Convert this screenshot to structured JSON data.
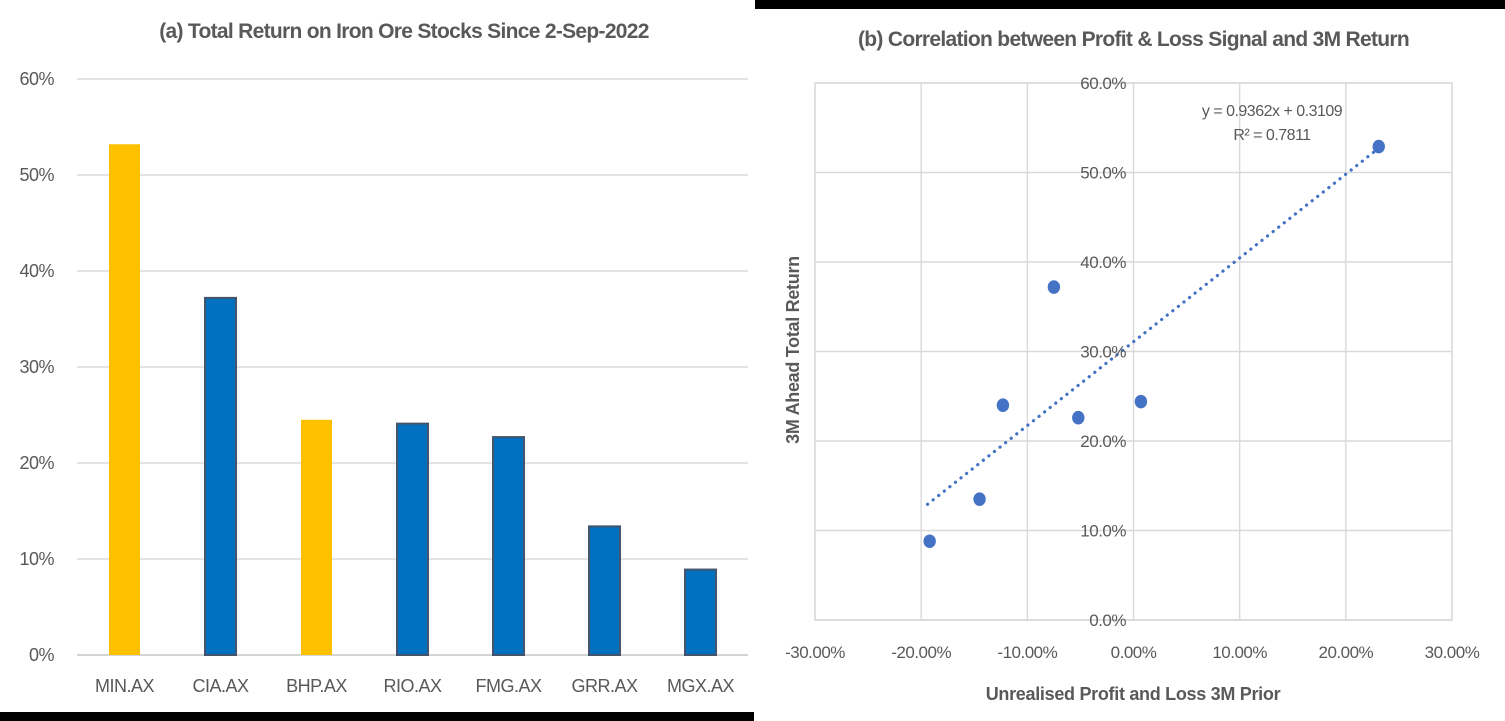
{
  "page": {
    "background": "#ffffff",
    "divider_strip_color": "#000000"
  },
  "colors": {
    "bar_blue_fill": "#0070C0",
    "bar_blue_border": "#44546A",
    "bar_yellow_fill": "#FFC000",
    "scatter_blue": "#4472C4",
    "trendline_blue": "#4472C4",
    "gridline": "#D9D9D9",
    "axis_line": "#C6C6C6",
    "text_gray": "#595959"
  },
  "chart_data": [
    {
      "type": "bar",
      "title": "(a) Total Return on Iron Ore Stocks Since 2-Sep-2022",
      "categories": [
        "MIN.AX",
        "CIA.AX",
        "BHP.AX",
        "RIO.AX",
        "FMG.AX",
        "GRR.AX",
        "MGX.AX"
      ],
      "values": [
        53.2,
        37.2,
        24.5,
        24.1,
        22.7,
        13.4,
        8.9
      ],
      "unit": "%",
      "bar_colors": [
        "yellow",
        "blue",
        "yellow",
        "blue",
        "blue",
        "blue",
        "blue"
      ],
      "xlabel": "",
      "ylabel": "",
      "ylim": [
        0,
        60
      ],
      "y_tick_step": 10,
      "y_tick_labels": [
        "0%",
        "10%",
        "20%",
        "30%",
        "40%",
        "50%",
        "60%"
      ],
      "grid": true,
      "legend": "none"
    },
    {
      "type": "scatter",
      "title": "(b) Correlation between Profit & Loss Signal and 3M Return",
      "xlabel": "Unrealised Profit and Loss 3M Prior",
      "ylabel": "3M Ahead Total Return",
      "points": [
        {
          "x": -19.2,
          "y": 8.8
        },
        {
          "x": -14.5,
          "y": 13.5
        },
        {
          "x": -12.3,
          "y": 24.0
        },
        {
          "x": -7.5,
          "y": 37.2
        },
        {
          "x": -5.2,
          "y": 22.6
        },
        {
          "x": 0.7,
          "y": 24.4
        },
        {
          "x": 23.1,
          "y": 52.9
        }
      ],
      "trendline": {
        "equation": "y = 0.9362x + 0.3109",
        "r_squared": "R² = 0.7811",
        "slope": 0.9362,
        "intercept_pct": 31.09,
        "x_start": -19.4,
        "x_end": 23.4,
        "style": "dotted"
      },
      "xlim": [
        -30,
        30
      ],
      "x_tick_step": 10,
      "x_tick_labels": [
        "-30.00%",
        "-20.00%",
        "-10.00%",
        "0.00%",
        "10.00%",
        "20.00%",
        "30.00%"
      ],
      "ylim": [
        0,
        60
      ],
      "y_tick_step": 10,
      "y_tick_labels": [
        "0.0%",
        "10.0%",
        "20.0%",
        "30.0%",
        "40.0%",
        "50.0%",
        "60.0%"
      ],
      "grid": true,
      "legend": "none"
    }
  ]
}
